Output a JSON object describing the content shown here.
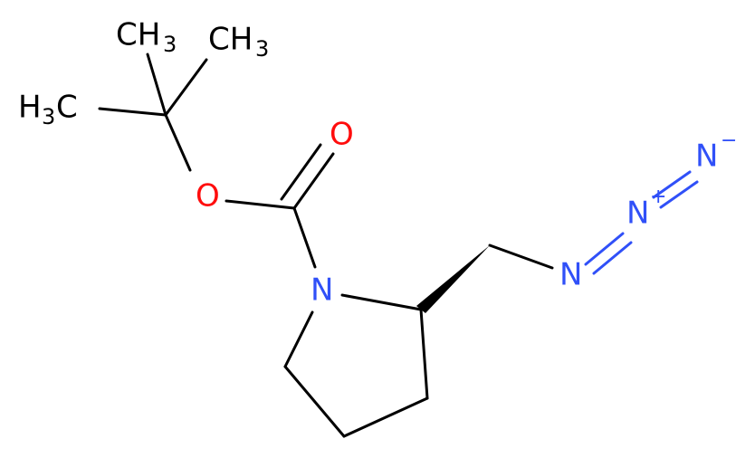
{
  "atoms": [
    {
      "parts": [
        "CH",
        "3"
      ]
    },
    {
      "parts": [
        "CH",
        "3"
      ]
    },
    {
      "parts": [
        "H",
        "3",
        "C"
      ]
    },
    {
      "parts": [
        "O"
      ]
    },
    {
      "parts": [
        "O"
      ]
    },
    {
      "parts": [
        "N"
      ]
    },
    {
      "parts": [
        "N"
      ]
    },
    {
      "parts": [
        "N",
        "+"
      ]
    },
    {
      "parts": [
        "N",
        "−"
      ]
    }
  ]
}
